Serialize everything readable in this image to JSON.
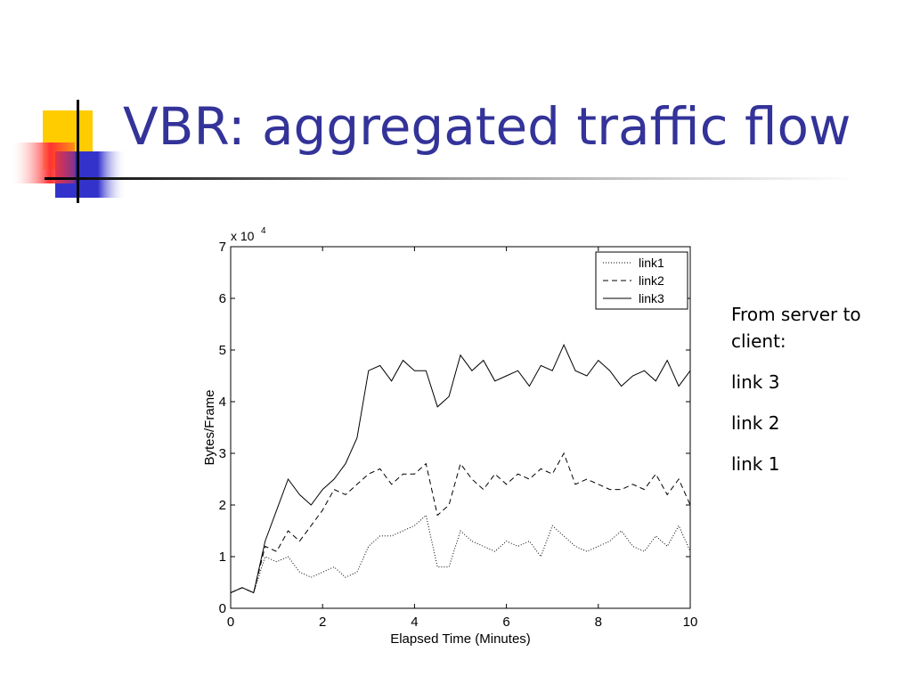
{
  "slide": {
    "title": "VBR: aggregated traffic flow",
    "notes": [
      "From server to client:",
      "link 3",
      "link 2",
      "link 1"
    ]
  },
  "chart_data": {
    "type": "line",
    "x_label": "Elapsed Time (Minutes)",
    "y_label": "Bytes/Frame",
    "y_scale_label": "x 10",
    "y_scale_exponent": "4",
    "xlim": [
      0,
      10
    ],
    "ylim": [
      0,
      7
    ],
    "xticks": [
      0,
      2,
      4,
      6,
      8,
      10
    ],
    "yticks": [
      0,
      1,
      2,
      3,
      4,
      5,
      6,
      7
    ],
    "legend": "top-right",
    "x": [
      0,
      0.25,
      0.5,
      0.75,
      1,
      1.25,
      1.5,
      1.75,
      2,
      2.25,
      2.5,
      2.75,
      3,
      3.25,
      3.5,
      3.75,
      4,
      4.25,
      4.5,
      4.75,
      5,
      5.25,
      5.5,
      5.75,
      6,
      6.25,
      6.5,
      6.75,
      7,
      7.25,
      7.5,
      7.75,
      8,
      8.25,
      8.5,
      8.75,
      9,
      9.25,
      9.5,
      9.75,
      10
    ],
    "series": [
      {
        "name": "link1",
        "color": "#000000",
        "dash": "dotted",
        "values": [
          0.3,
          0.4,
          0.3,
          1.0,
          0.9,
          1.0,
          0.7,
          0.6,
          0.7,
          0.8,
          0.6,
          0.7,
          1.2,
          1.4,
          1.4,
          1.5,
          1.6,
          1.8,
          0.8,
          0.8,
          1.5,
          1.3,
          1.2,
          1.1,
          1.3,
          1.2,
          1.3,
          1.0,
          1.6,
          1.4,
          1.2,
          1.1,
          1.2,
          1.3,
          1.5,
          1.2,
          1.1,
          1.4,
          1.2,
          1.6,
          1.1
        ]
      },
      {
        "name": "link2",
        "color": "#000000",
        "dash": "dashed",
        "values": [
          0.3,
          0.4,
          0.3,
          1.2,
          1.1,
          1.5,
          1.3,
          1.6,
          1.9,
          2.3,
          2.2,
          2.4,
          2.6,
          2.7,
          2.4,
          2.6,
          2.6,
          2.8,
          1.8,
          2.0,
          2.8,
          2.5,
          2.3,
          2.6,
          2.4,
          2.6,
          2.5,
          2.7,
          2.6,
          3.0,
          2.4,
          2.5,
          2.4,
          2.3,
          2.3,
          2.4,
          2.3,
          2.6,
          2.2,
          2.5,
          2.0
        ]
      },
      {
        "name": "link3",
        "color": "#000000",
        "dash": "solid",
        "values": [
          0.3,
          0.4,
          0.3,
          1.3,
          1.9,
          2.5,
          2.2,
          2.0,
          2.3,
          2.5,
          2.8,
          3.3,
          4.6,
          4.7,
          4.4,
          4.8,
          4.6,
          4.6,
          3.9,
          4.1,
          4.9,
          4.6,
          4.8,
          4.4,
          4.5,
          4.6,
          4.3,
          4.7,
          4.6,
          5.1,
          4.6,
          4.5,
          4.8,
          4.6,
          4.3,
          4.5,
          4.6,
          4.4,
          4.8,
          4.3,
          4.6
        ]
      }
    ]
  }
}
